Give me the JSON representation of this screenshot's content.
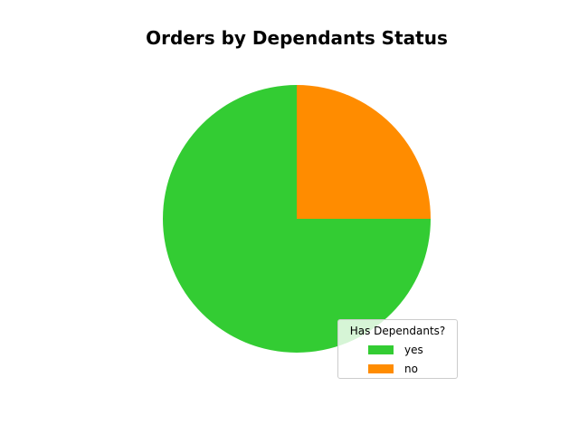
{
  "chart_data": {
    "type": "pie",
    "title": "Orders by Dependants Status",
    "categories": [
      "yes",
      "no"
    ],
    "values": [
      75,
      25
    ],
    "colors": [
      "#33cc33",
      "#ff8c00"
    ],
    "legend": {
      "title": "Has Dependants?",
      "placement": "lower-right"
    },
    "start_angle_deg": 0,
    "direction": "clockwise"
  }
}
